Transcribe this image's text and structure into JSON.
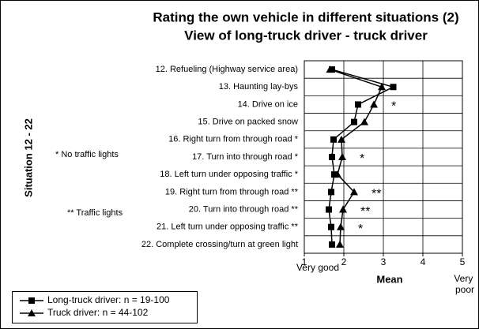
{
  "chart_data": {
    "type": "line",
    "orientation": "horizontal",
    "title": "Rating the own vehicle in different situations (2)",
    "subtitle": "View of long-truck driver - truck driver",
    "y_axis_title": "Situation 12 - 22",
    "x_axis_title": "Mean",
    "x_label_left": "Very good",
    "x_label_right": "Very poor",
    "notes": [
      "* No traffic lights",
      "** Traffic lights"
    ],
    "categories": [
      "12. Refueling (Highway service area)",
      "13. Haunting lay-bys",
      "14. Drive on ice",
      "15. Drive on packed snow",
      "16. Right turn from through road *",
      "17. Turn into through road *",
      "18. Left turn under opposing traffic *",
      "19. Right turn from through road **",
      "20. Turn into through road **",
      "21. Left turn under opposing traffic **",
      "22. Complete crossing/turn at green light"
    ],
    "significance": [
      null,
      null,
      "*",
      null,
      null,
      "*",
      null,
      "**",
      "**",
      "*",
      null
    ],
    "series": [
      {
        "name": "Long-truck driver: n = 19-100",
        "marker": "square",
        "color": "#000000",
        "values": [
          1.7,
          3.25,
          2.36,
          2.26,
          1.74,
          1.7,
          1.76,
          1.68,
          1.62,
          1.68,
          1.7
        ]
      },
      {
        "name": "Truck driver: n = 44-102",
        "marker": "triangle",
        "color": "#000000",
        "values": [
          1.65,
          2.96,
          2.76,
          2.52,
          1.94,
          1.96,
          1.84,
          2.26,
          1.98,
          1.92,
          1.9
        ]
      }
    ],
    "xlim": [
      1,
      5
    ],
    "xticks": [
      1,
      2,
      3,
      4,
      5
    ],
    "grid": true
  }
}
